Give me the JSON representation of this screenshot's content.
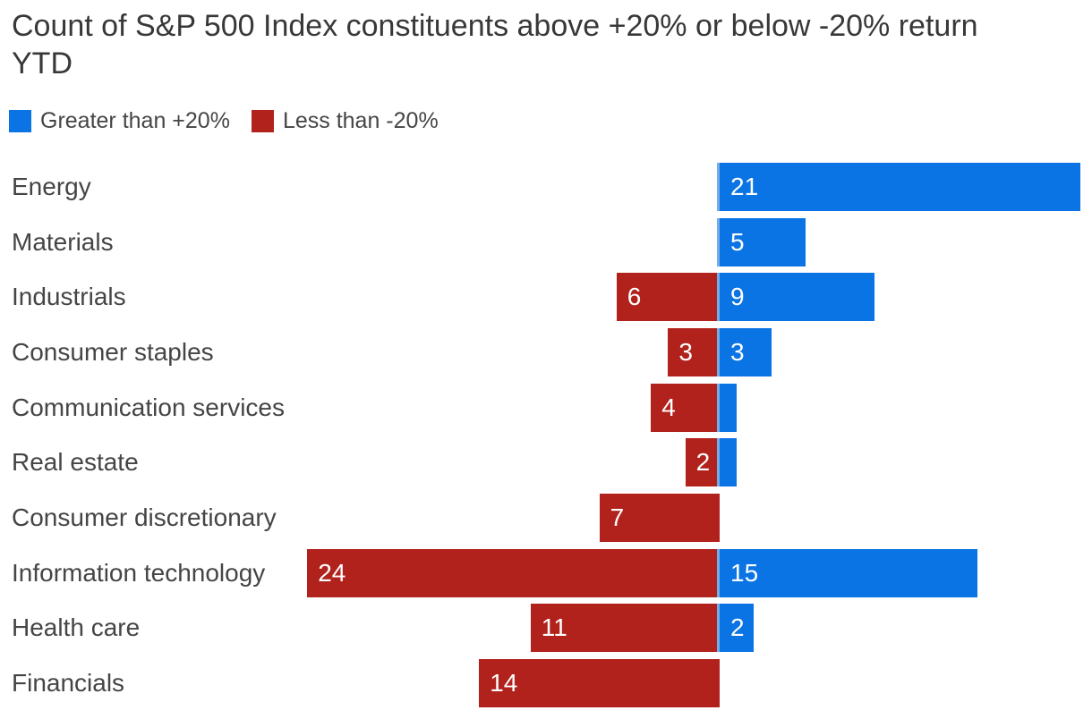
{
  "title": "Count of S&P 500 Index constituents above +20% or below -20% return YTD",
  "chart_data": {
    "type": "bar",
    "variant": "diverging-horizontal",
    "title": "Count of S&P 500 Index constituents above +20% or below -20% return YTD",
    "categories": [
      "Energy",
      "Materials",
      "Industrials",
      "Consumer staples",
      "Communication services",
      "Real estate",
      "Consumer discretionary",
      "Information technology",
      "Health care",
      "Financials"
    ],
    "series": [
      {
        "name": "Greater than +20%",
        "color": "#0b74e4",
        "values": [
          21,
          5,
          9,
          3,
          1,
          1,
          0,
          15,
          2,
          0
        ]
      },
      {
        "name": "Less than -20%",
        "color": "#b1221c",
        "values": [
          0,
          0,
          6,
          3,
          4,
          2,
          7,
          24,
          11,
          14
        ]
      }
    ],
    "xlim": [
      -24,
      21
    ],
    "grid": false,
    "axis_labels_shown": false,
    "legend_position": "top-left",
    "value_labels": "inside-bar-start",
    "value_label_threshold": 2,
    "value_label_color": "#ffffff",
    "zero_divider_color": "#72aeea",
    "background": "#ffffff",
    "text_color": "#454545"
  }
}
